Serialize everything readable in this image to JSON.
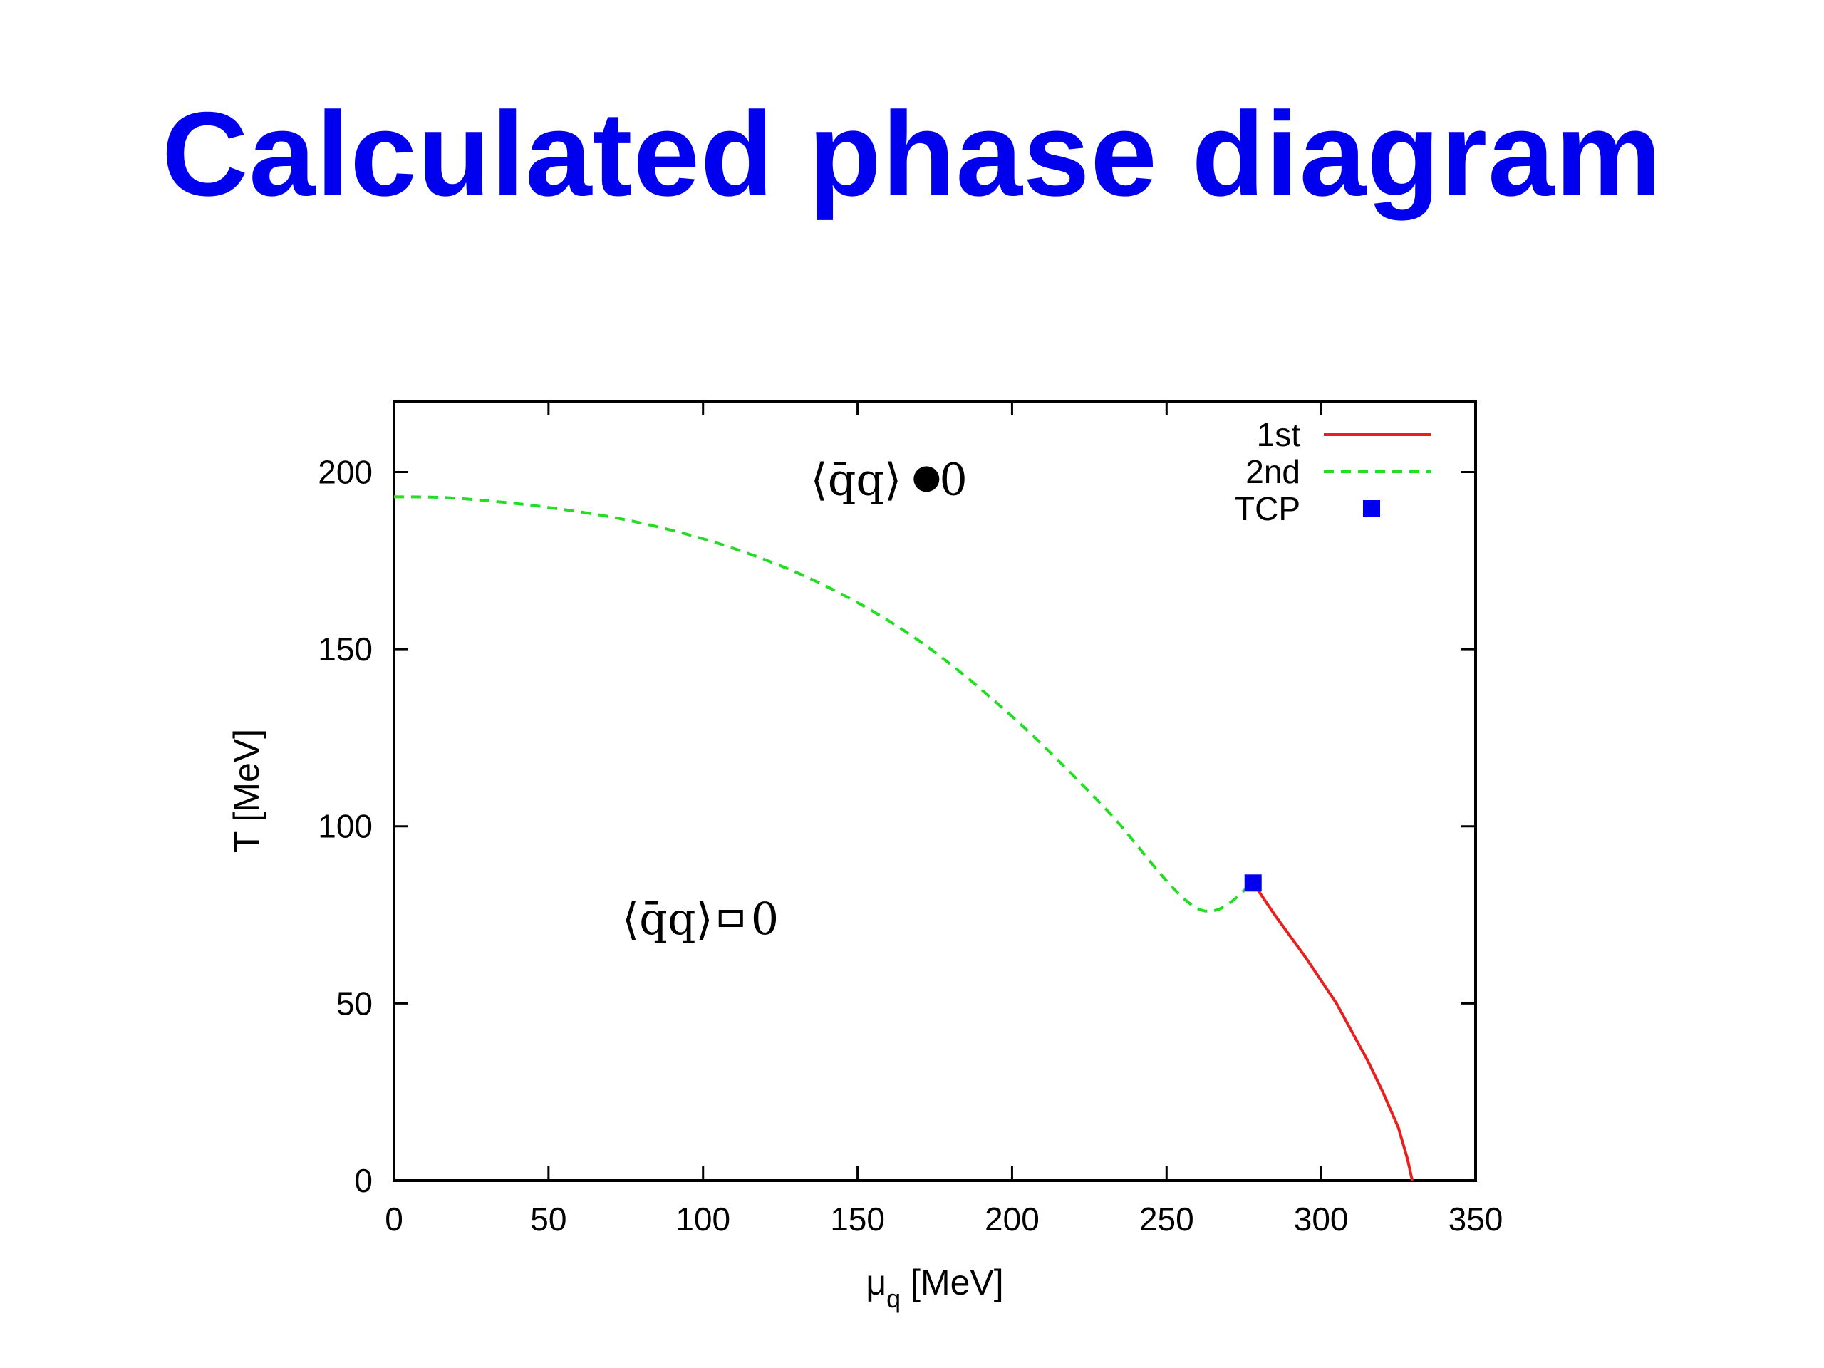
{
  "slide": {
    "title": "Calculated phase diagram",
    "title_color": "#0000ee"
  },
  "chart_data": {
    "type": "line",
    "xlabel_base": "μ",
    "xlabel_sub": "q",
    "xlabel_unit": " [MeV]",
    "ylabel": "T [MeV]",
    "xlim": [
      0,
      350
    ],
    "ylim": [
      0,
      220
    ],
    "xticks": [
      0,
      50,
      100,
      150,
      200,
      250,
      300,
      350
    ],
    "yticks": [
      0,
      50,
      100,
      150,
      200
    ],
    "grid": false,
    "legend_position": "top-right",
    "series": [
      {
        "name": "1st",
        "style": "solid",
        "color": "#e8201f",
        "x": [
          278,
          285,
          295,
          305,
          315,
          320,
          325,
          328,
          329,
          329.5
        ],
        "y": [
          84,
          75,
          63,
          50,
          34,
          25,
          15,
          6,
          2,
          0
        ]
      },
      {
        "name": "2nd",
        "style": "dashed",
        "color": "#22dd22",
        "x": [
          0,
          20,
          50,
          80,
          110,
          140,
          170,
          200,
          230,
          260,
          278
        ],
        "y": [
          193,
          192.6,
          190,
          185.6,
          178.4,
          167.7,
          152.3,
          131,
          105.2,
          76.8,
          84
        ]
      },
      {
        "name": "TCP",
        "style": "point",
        "color": "#0000ee",
        "x": [
          278
        ],
        "y": [
          84
        ]
      }
    ],
    "annotations": [
      {
        "text": "⟨q̄q⟩",
        "suffix": "0",
        "marker": "filled-circle",
        "x": 170,
        "y": 198
      },
      {
        "text": "⟨q̄q⟩",
        "suffix": "0",
        "marker": "small-glyph",
        "x": 109,
        "y": 74
      }
    ]
  }
}
